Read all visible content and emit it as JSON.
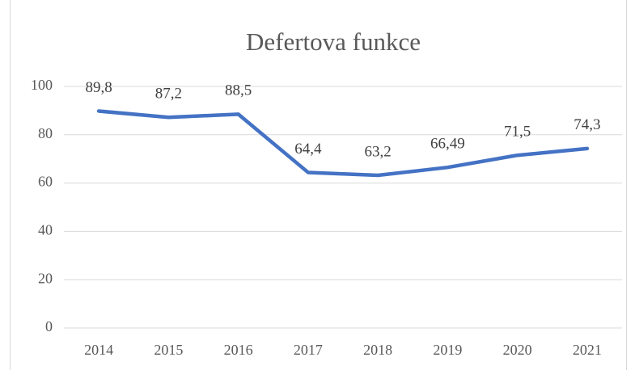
{
  "chart_data": {
    "type": "line",
    "title": "Defertova funkce",
    "categories": [
      "2014",
      "2015",
      "2016",
      "2017",
      "2018",
      "2019",
      "2020",
      "2021"
    ],
    "series": [
      {
        "name": "Defertova funkce",
        "color": "#4472c4",
        "values": [
          89.8,
          87.2,
          88.5,
          64.4,
          63.2,
          66.49,
          71.5,
          74.3
        ],
        "value_labels": [
          "89,8",
          "87,2",
          "88,5",
          "64,4",
          "63,2",
          "66,49",
          "71,5",
          "74,3"
        ]
      }
    ],
    "ylim": [
      0,
      100
    ],
    "yticks": [
      0,
      20,
      40,
      60,
      80,
      100
    ],
    "grid": true
  }
}
